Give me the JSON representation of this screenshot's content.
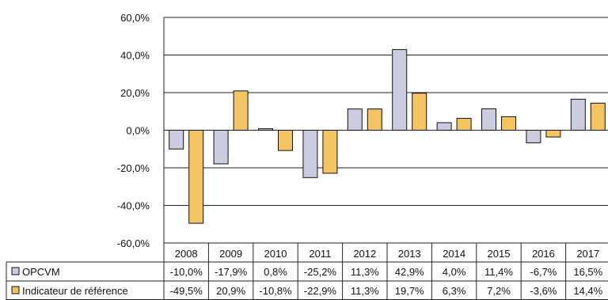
{
  "chart_data": {
    "type": "bar",
    "categories": [
      "2008",
      "2009",
      "2010",
      "2011",
      "2012",
      "2013",
      "2014",
      "2015",
      "2016",
      "2017"
    ],
    "series": [
      {
        "name": "OPCVM",
        "color": "#cccce0",
        "values": [
          -10.0,
          -17.9,
          0.8,
          -25.2,
          11.3,
          42.9,
          4.0,
          11.4,
          -6.7,
          16.5
        ],
        "labels": [
          "-10,0%",
          "-17,9%",
          "0,8%",
          "-25,2%",
          "11,3%",
          "42,9%",
          "4,0%",
          "11,4%",
          "-6,7%",
          "16,5%"
        ]
      },
      {
        "name": "Indicateur de référence",
        "color": "#f5c462",
        "values": [
          -49.5,
          20.9,
          -10.8,
          -22.9,
          11.3,
          19.7,
          6.3,
          7.2,
          -3.6,
          14.4
        ],
        "labels": [
          "-49,5%",
          "20,9%",
          "-10,8%",
          "-22,9%",
          "11,3%",
          "19,7%",
          "6,3%",
          "7,2%",
          "-3,6%",
          "14,4%"
        ]
      }
    ],
    "ylim": [
      -60,
      60
    ],
    "yticks": [
      60,
      40,
      20,
      0,
      -20,
      -40,
      -60
    ],
    "ytick_labels": [
      "60,0%",
      "40,0%",
      "20,0%",
      "0,0%",
      "-20,0%",
      "-40,0%",
      "-60,0%"
    ],
    "grid": true,
    "legend": "data-table"
  }
}
